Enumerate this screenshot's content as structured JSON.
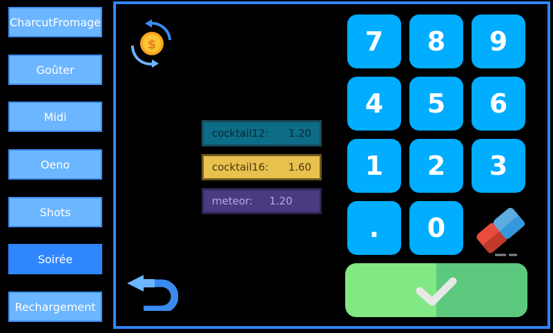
{
  "sidebar": {
    "items": [
      {
        "label": "CharcutFromage"
      },
      {
        "label": "Goûter"
      },
      {
        "label": "Midi"
      },
      {
        "label": "Oeno"
      },
      {
        "label": "Shots"
      },
      {
        "label": "Soirée",
        "active": true
      },
      {
        "label": "Rechargement"
      }
    ]
  },
  "items": [
    {
      "name": "cocktail12:",
      "price": "1.20"
    },
    {
      "name": "cocktail16:",
      "price": "1.60"
    },
    {
      "name": "meteor:",
      "price": "1.20"
    }
  ],
  "keypad": {
    "keys": [
      "7",
      "8",
      "9",
      "4",
      "5",
      "6",
      "1",
      "2",
      "3",
      ".",
      "0"
    ]
  },
  "icons": {
    "currency": "currency-exchange-icon",
    "back": "undo-arrow-icon",
    "erase": "eraser-icon",
    "confirm": "checkmark-icon"
  },
  "colors": {
    "accent": "#2f86ff",
    "key": "#00adff",
    "confirm": "#82e884"
  }
}
